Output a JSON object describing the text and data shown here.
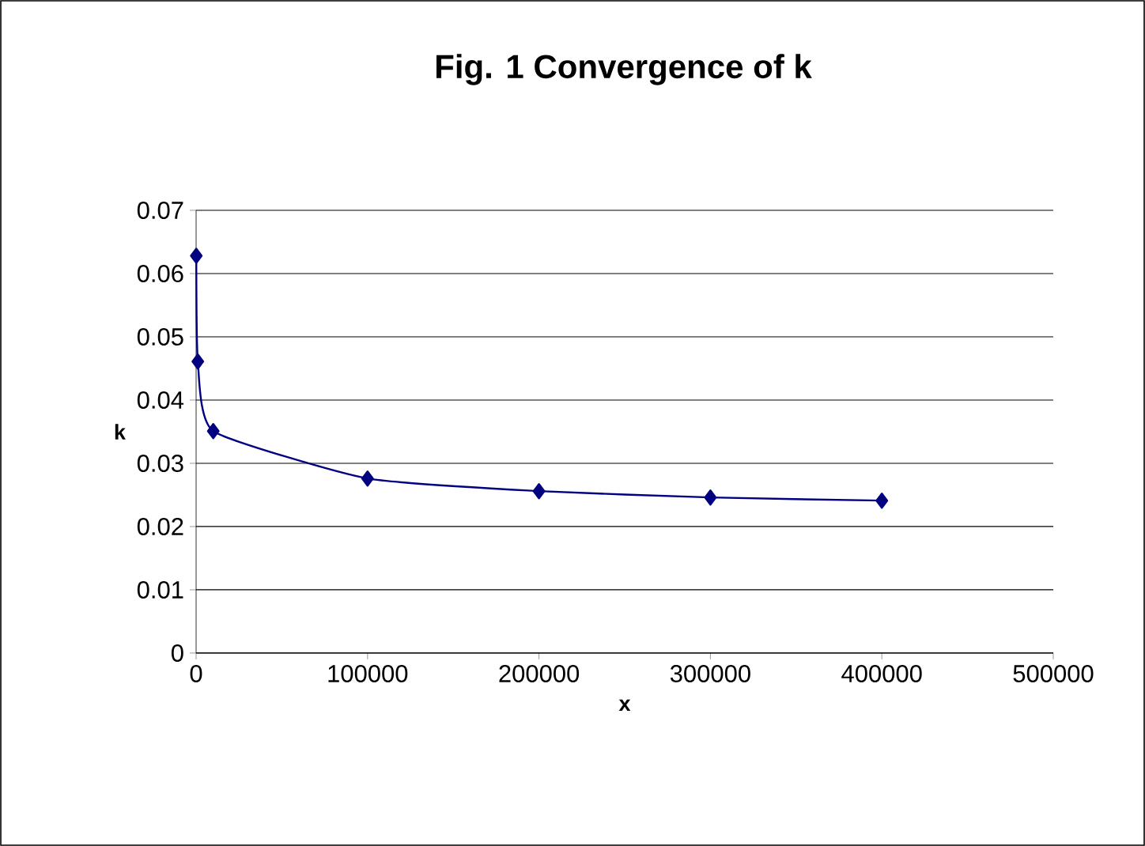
{
  "chart_data": {
    "type": "line",
    "title": "Fig. 1  Convergence of k",
    "xlabel": "x",
    "ylabel": "k",
    "x": [
      100,
      1000,
      10000,
      100000,
      200000,
      300000,
      400000
    ],
    "series": [
      {
        "color": "#000080",
        "values": [
          0.0628,
          0.0461,
          0.0351,
          0.0276,
          0.0256,
          0.0246,
          0.0241
        ]
      }
    ],
    "xlim": [
      0,
      500000
    ],
    "ylim": [
      0,
      0.07
    ],
    "xticks": [
      0,
      100000,
      200000,
      300000,
      400000,
      500000
    ],
    "yticks": [
      0,
      0.01,
      0.02,
      0.03,
      0.04,
      0.05,
      0.06,
      0.07
    ],
    "grid": "y",
    "marker": "diamond",
    "line_style": "solid"
  }
}
